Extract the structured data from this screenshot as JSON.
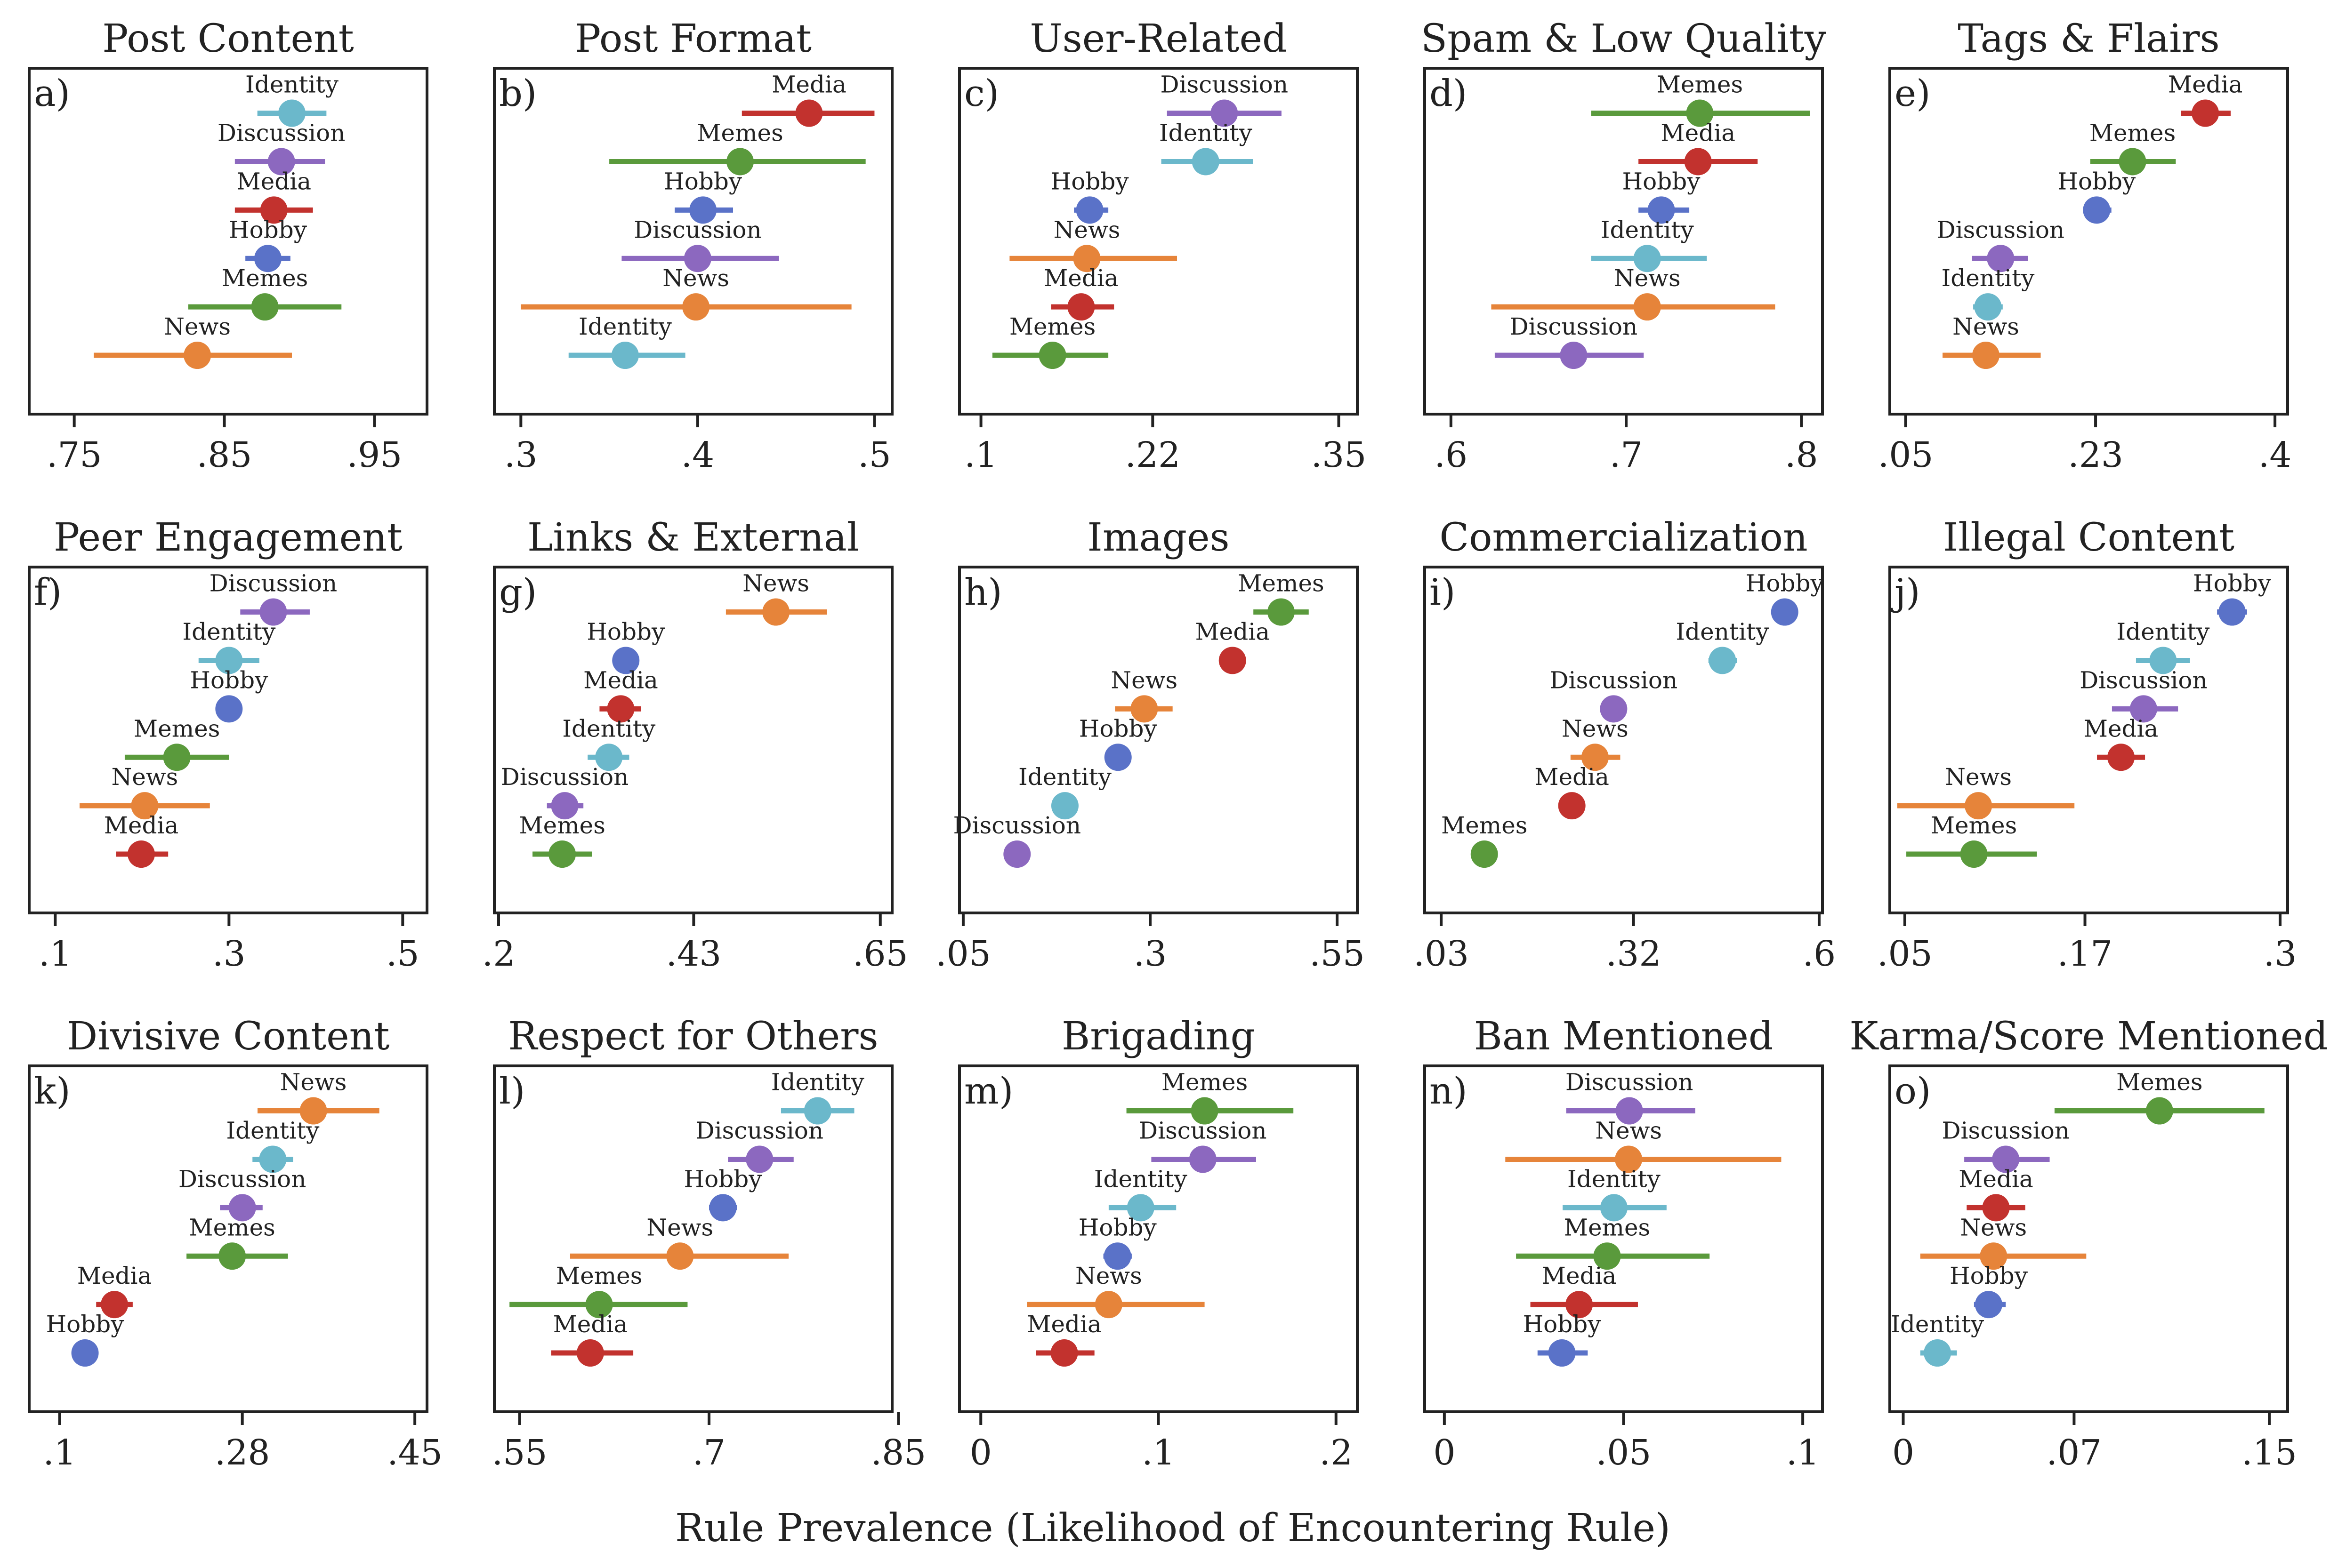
{
  "xlabel": "Rule Prevalence (Likelihood of Encountering Rule)",
  "colors": {
    "Identity": "#6bb8cb",
    "Discussion": "#8c68bf",
    "Media": "#c2322e",
    "Hobby": "#5a72c8",
    "Memes": "#5a9a3c",
    "News": "#e6843a"
  },
  "chart_data": [
    {
      "type": "scatter",
      "letter": "a)",
      "title": "Post Content",
      "xlim": [
        0.72,
        0.985
      ],
      "ticks": [
        0.75,
        0.85,
        0.95
      ],
      "tick_labels": [
        ".75",
        ".85",
        ".95"
      ],
      "points": [
        {
          "name": "Identity",
          "x": 0.895,
          "lo": 0.872,
          "hi": 0.918
        },
        {
          "name": "Discussion",
          "x": 0.888,
          "lo": 0.857,
          "hi": 0.917
        },
        {
          "name": "Media",
          "x": 0.883,
          "lo": 0.857,
          "hi": 0.909
        },
        {
          "name": "Hobby",
          "x": 0.879,
          "lo": 0.864,
          "hi": 0.894
        },
        {
          "name": "Memes",
          "x": 0.877,
          "lo": 0.826,
          "hi": 0.928
        },
        {
          "name": "News",
          "x": 0.832,
          "lo": 0.763,
          "hi": 0.895
        }
      ]
    },
    {
      "type": "scatter",
      "letter": "b)",
      "title": "Post Format",
      "xlim": [
        0.285,
        0.51
      ],
      "ticks": [
        0.3,
        0.4,
        0.5
      ],
      "tick_labels": [
        ".3",
        ".4",
        ".5"
      ],
      "points": [
        {
          "name": "Media",
          "x": 0.463,
          "lo": 0.425,
          "hi": 0.5
        },
        {
          "name": "Memes",
          "x": 0.424,
          "lo": 0.35,
          "hi": 0.495
        },
        {
          "name": "Hobby",
          "x": 0.403,
          "lo": 0.387,
          "hi": 0.42
        },
        {
          "name": "Discussion",
          "x": 0.4,
          "lo": 0.357,
          "hi": 0.446
        },
        {
          "name": "News",
          "x": 0.399,
          "lo": 0.3,
          "hi": 0.487
        },
        {
          "name": "Identity",
          "x": 0.359,
          "lo": 0.327,
          "hi": 0.393
        }
      ]
    },
    {
      "type": "scatter",
      "letter": "c)",
      "title": "User-Related",
      "xlim": [
        0.085,
        0.363
      ],
      "ticks": [
        0.1,
        0.22,
        0.35
      ],
      "tick_labels": [
        ".1",
        ".22",
        ".35"
      ],
      "points": [
        {
          "name": "Discussion",
          "x": 0.27,
          "lo": 0.23,
          "hi": 0.31
        },
        {
          "name": "Identity",
          "x": 0.257,
          "lo": 0.226,
          "hi": 0.29
        },
        {
          "name": "Hobby",
          "x": 0.176,
          "lo": 0.165,
          "hi": 0.189
        },
        {
          "name": "News",
          "x": 0.174,
          "lo": 0.12,
          "hi": 0.237
        },
        {
          "name": "Media",
          "x": 0.17,
          "lo": 0.149,
          "hi": 0.193
        },
        {
          "name": "Memes",
          "x": 0.15,
          "lo": 0.108,
          "hi": 0.189
        }
      ]
    },
    {
      "type": "scatter",
      "letter": "d)",
      "title": "Spam & Low Quality",
      "xlim": [
        0.585,
        0.812
      ],
      "ticks": [
        0.6,
        0.7,
        0.8
      ],
      "tick_labels": [
        ".6",
        ".7",
        ".8"
      ],
      "points": [
        {
          "name": "Memes",
          "x": 0.742,
          "lo": 0.68,
          "hi": 0.805
        },
        {
          "name": "Media",
          "x": 0.741,
          "lo": 0.707,
          "hi": 0.775
        },
        {
          "name": "Hobby",
          "x": 0.72,
          "lo": 0.707,
          "hi": 0.736
        },
        {
          "name": "Identity",
          "x": 0.712,
          "lo": 0.68,
          "hi": 0.746
        },
        {
          "name": "News",
          "x": 0.712,
          "lo": 0.623,
          "hi": 0.785
        },
        {
          "name": "Discussion",
          "x": 0.67,
          "lo": 0.625,
          "hi": 0.71
        }
      ]
    },
    {
      "type": "scatter",
      "letter": "e)",
      "title": "Tags & Flairs",
      "xlim": [
        0.035,
        0.412
      ],
      "ticks": [
        0.05,
        0.23,
        0.4
      ],
      "tick_labels": [
        ".05",
        ".23",
        ".4"
      ],
      "points": [
        {
          "name": "Media",
          "x": 0.334,
          "lo": 0.311,
          "hi": 0.358
        },
        {
          "name": "Memes",
          "x": 0.265,
          "lo": 0.225,
          "hi": 0.306
        },
        {
          "name": "Hobby",
          "x": 0.231,
          "lo": 0.218,
          "hi": 0.245
        },
        {
          "name": "Discussion",
          "x": 0.14,
          "lo": 0.113,
          "hi": 0.166
        },
        {
          "name": "Identity",
          "x": 0.128,
          "lo": 0.114,
          "hi": 0.142
        },
        {
          "name": "News",
          "x": 0.126,
          "lo": 0.085,
          "hi": 0.178
        }
      ]
    },
    {
      "type": "scatter",
      "letter": "f)",
      "title": "Peer Engagement",
      "xlim": [
        0.07,
        0.528
      ],
      "ticks": [
        0.1,
        0.3,
        0.5
      ],
      "tick_labels": [
        ".1",
        ".3",
        ".5"
      ],
      "points": [
        {
          "name": "Discussion",
          "x": 0.351,
          "lo": 0.313,
          "hi": 0.393
        },
        {
          "name": "Identity",
          "x": 0.3,
          "lo": 0.265,
          "hi": 0.335
        },
        {
          "name": "Hobby",
          "x": 0.3,
          "lo": 0.285,
          "hi": 0.315
        },
        {
          "name": "Memes",
          "x": 0.24,
          "lo": 0.18,
          "hi": 0.3
        },
        {
          "name": "News",
          "x": 0.203,
          "lo": 0.128,
          "hi": 0.278
        },
        {
          "name": "Media",
          "x": 0.199,
          "lo": 0.17,
          "hi": 0.23
        }
      ]
    },
    {
      "type": "scatter",
      "letter": "g)",
      "title": "Links & External",
      "xlim": [
        0.195,
        0.664
      ],
      "ticks": [
        0.2,
        0.43,
        0.65
      ],
      "tick_labels": [
        ".2",
        ".43",
        ".65"
      ],
      "points": [
        {
          "name": "News",
          "x": 0.527,
          "lo": 0.468,
          "hi": 0.587
        },
        {
          "name": "Hobby",
          "x": 0.35,
          "lo": 0.341,
          "hi": 0.36
        },
        {
          "name": "Media",
          "x": 0.344,
          "lo": 0.319,
          "hi": 0.368
        },
        {
          "name": "Identity",
          "x": 0.33,
          "lo": 0.305,
          "hi": 0.354
        },
        {
          "name": "Discussion",
          "x": 0.278,
          "lo": 0.257,
          "hi": 0.3
        },
        {
          "name": "Memes",
          "x": 0.275,
          "lo": 0.24,
          "hi": 0.31
        }
      ]
    },
    {
      "type": "scatter",
      "letter": "h)",
      "title": "Images",
      "xlim": [
        0.045,
        0.577
      ],
      "ticks": [
        0.05,
        0.3,
        0.55
      ],
      "tick_labels": [
        ".05",
        ".3",
        ".55"
      ],
      "points": [
        {
          "name": "Memes",
          "x": 0.475,
          "lo": 0.438,
          "hi": 0.512
        },
        {
          "name": "Media",
          "x": 0.41,
          "lo": 0.392,
          "hi": 0.428
        },
        {
          "name": "News",
          "x": 0.292,
          "lo": 0.253,
          "hi": 0.33
        },
        {
          "name": "Hobby",
          "x": 0.257,
          "lo": 0.247,
          "hi": 0.267
        },
        {
          "name": "Identity",
          "x": 0.186,
          "lo": 0.174,
          "hi": 0.199
        },
        {
          "name": "Discussion",
          "x": 0.122,
          "lo": 0.107,
          "hi": 0.136
        }
      ]
    },
    {
      "type": "scatter",
      "letter": "i)",
      "title": "Commercialization",
      "xlim": [
        0.005,
        0.605
      ],
      "ticks": [
        0.03,
        0.32,
        0.6
      ],
      "tick_labels": [
        ".03",
        ".32",
        ".6"
      ],
      "points": [
        {
          "name": "Hobby",
          "x": 0.548,
          "lo": 0.54,
          "hi": 0.556
        },
        {
          "name": "Identity",
          "x": 0.454,
          "lo": 0.433,
          "hi": 0.476
        },
        {
          "name": "Discussion",
          "x": 0.29,
          "lo": 0.27,
          "hi": 0.31
        },
        {
          "name": "News",
          "x": 0.262,
          "lo": 0.225,
          "hi": 0.3
        },
        {
          "name": "Media",
          "x": 0.227,
          "lo": 0.211,
          "hi": 0.245
        },
        {
          "name": "Memes",
          "x": 0.095,
          "lo": 0.077,
          "hi": 0.113
        }
      ]
    },
    {
      "type": "scatter",
      "letter": "j)",
      "title": "Illegal Content",
      "xlim": [
        0.04,
        0.305
      ],
      "ticks": [
        0.05,
        0.17,
        0.3
      ],
      "tick_labels": [
        ".05",
        ".17",
        ".3"
      ],
      "points": [
        {
          "name": "Hobby",
          "x": 0.268,
          "lo": 0.258,
          "hi": 0.278
        },
        {
          "name": "Identity",
          "x": 0.222,
          "lo": 0.204,
          "hi": 0.24
        },
        {
          "name": "Discussion",
          "x": 0.209,
          "lo": 0.188,
          "hi": 0.232
        },
        {
          "name": "Media",
          "x": 0.194,
          "lo": 0.178,
          "hi": 0.21
        },
        {
          "name": "News",
          "x": 0.099,
          "lo": 0.045,
          "hi": 0.163
        },
        {
          "name": "Memes",
          "x": 0.096,
          "lo": 0.051,
          "hi": 0.138
        }
      ]
    },
    {
      "type": "scatter",
      "letter": "k)",
      "title": "Divisive Content",
      "xlim": [
        0.07,
        0.462
      ],
      "ticks": [
        0.1,
        0.28,
        0.45
      ],
      "tick_labels": [
        ".1",
        ".28",
        ".45"
      ],
      "points": [
        {
          "name": "News",
          "x": 0.35,
          "lo": 0.295,
          "hi": 0.415
        },
        {
          "name": "Identity",
          "x": 0.31,
          "lo": 0.29,
          "hi": 0.33
        },
        {
          "name": "Discussion",
          "x": 0.28,
          "lo": 0.258,
          "hi": 0.3
        },
        {
          "name": "Memes",
          "x": 0.27,
          "lo": 0.225,
          "hi": 0.325
        },
        {
          "name": "Media",
          "x": 0.154,
          "lo": 0.136,
          "hi": 0.172
        },
        {
          "name": "Hobby",
          "x": 0.125,
          "lo": 0.12,
          "hi": 0.13
        }
      ]
    },
    {
      "type": "scatter",
      "letter": "l)",
      "title": "Respect for Others",
      "xlim": [
        0.53,
        0.845
      ],
      "ticks": [
        0.55,
        0.7,
        0.85
      ],
      "tick_labels": [
        ".55",
        ".7",
        ".85"
      ],
      "points": [
        {
          "name": "Identity",
          "x": 0.786,
          "lo": 0.757,
          "hi": 0.815
        },
        {
          "name": "Discussion",
          "x": 0.74,
          "lo": 0.715,
          "hi": 0.767
        },
        {
          "name": "Hobby",
          "x": 0.711,
          "lo": 0.7,
          "hi": 0.722
        },
        {
          "name": "News",
          "x": 0.677,
          "lo": 0.59,
          "hi": 0.763
        },
        {
          "name": "Memes",
          "x": 0.613,
          "lo": 0.542,
          "hi": 0.683
        },
        {
          "name": "Media",
          "x": 0.606,
          "lo": 0.575,
          "hi": 0.64
        }
      ]
    },
    {
      "type": "scatter",
      "letter": "m)",
      "title": "Brigading",
      "xlim": [
        -0.012,
        0.212
      ],
      "ticks": [
        0,
        0.1,
        0.2
      ],
      "tick_labels": [
        "0",
        ".1",
        ".2"
      ],
      "points": [
        {
          "name": "Memes",
          "x": 0.126,
          "lo": 0.082,
          "hi": 0.176
        },
        {
          "name": "Discussion",
          "x": 0.125,
          "lo": 0.096,
          "hi": 0.155
        },
        {
          "name": "Identity",
          "x": 0.09,
          "lo": 0.072,
          "hi": 0.11
        },
        {
          "name": "Hobby",
          "x": 0.077,
          "lo": 0.069,
          "hi": 0.085
        },
        {
          "name": "News",
          "x": 0.072,
          "lo": 0.026,
          "hi": 0.126
        },
        {
          "name": "Media",
          "x": 0.047,
          "lo": 0.031,
          "hi": 0.064
        }
      ]
    },
    {
      "type": "scatter",
      "letter": "n)",
      "title": "Ban Mentioned",
      "xlim": [
        -0.0055,
        0.1055
      ],
      "ticks": [
        0,
        0.05,
        0.1
      ],
      "tick_labels": [
        "0",
        ".05",
        ".1"
      ],
      "points": [
        {
          "name": "Discussion",
          "x": 0.0516,
          "lo": 0.034,
          "hi": 0.07
        },
        {
          "name": "News",
          "x": 0.0514,
          "lo": 0.017,
          "hi": 0.094
        },
        {
          "name": "Identity",
          "x": 0.0473,
          "lo": 0.033,
          "hi": 0.062
        },
        {
          "name": "Memes",
          "x": 0.0454,
          "lo": 0.02,
          "hi": 0.074
        },
        {
          "name": "Media",
          "x": 0.0376,
          "lo": 0.024,
          "hi": 0.054
        },
        {
          "name": "Hobby",
          "x": 0.0328,
          "lo": 0.026,
          "hi": 0.04
        }
      ]
    },
    {
      "type": "scatter",
      "letter": "o)",
      "title": "Karma/Score Mentioned",
      "xlim": [
        -0.0055,
        0.1575
      ],
      "ticks": [
        0,
        0.07,
        0.15
      ],
      "tick_labels": [
        "0",
        ".07",
        ".15"
      ],
      "points": [
        {
          "name": "Memes",
          "x": 0.105,
          "lo": 0.062,
          "hi": 0.148
        },
        {
          "name": "Discussion",
          "x": 0.042,
          "lo": 0.025,
          "hi": 0.06
        },
        {
          "name": "Media",
          "x": 0.038,
          "lo": 0.026,
          "hi": 0.05
        },
        {
          "name": "News",
          "x": 0.037,
          "lo": 0.007,
          "hi": 0.075
        },
        {
          "name": "Hobby",
          "x": 0.035,
          "lo": 0.029,
          "hi": 0.042
        },
        {
          "name": "Identity",
          "x": 0.014,
          "lo": 0.007,
          "hi": 0.022
        }
      ]
    }
  ]
}
